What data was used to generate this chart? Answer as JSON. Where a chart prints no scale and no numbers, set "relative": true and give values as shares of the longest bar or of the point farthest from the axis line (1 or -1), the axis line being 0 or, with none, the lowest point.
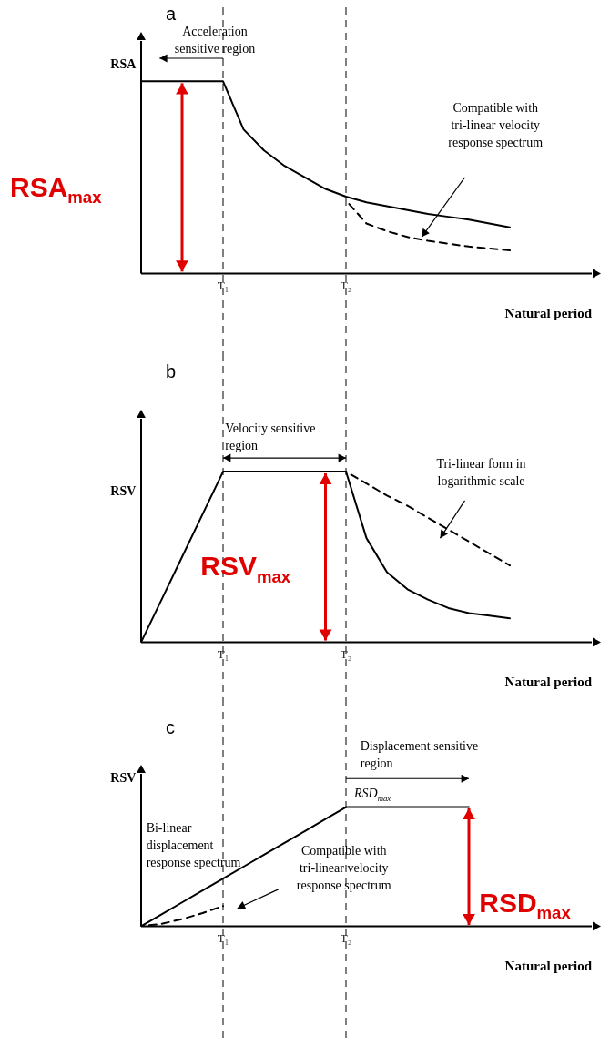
{
  "chart_data": [
    {
      "type": "line",
      "title": "a",
      "ylabel": "RSA",
      "xlabel": "Natural period",
      "relative": true,
      "tick_labels": "x",
      "categories": [
        null,
        null,
        null,
        null,
        "T₁",
        null,
        null,
        null,
        null,
        null,
        "T₂",
        null,
        null,
        null,
        null,
        null,
        null,
        null,
        null,
        null,
        null,
        null,
        null
      ],
      "series": [
        {
          "color": "#000000",
          "line_style": "solid",
          "values": [
            1,
            1,
            1,
            1,
            1,
            0.75,
            0.64,
            0.56,
            0.5,
            0.44,
            0.4,
            0.37,
            0.35,
            0.33,
            0.31,
            0.295,
            0.28,
            0.26,
            0.24,
            null,
            null,
            null,
            null
          ]
        },
        {
          "color": "#000000",
          "line_style": "dashed",
          "values": [
            null,
            null,
            null,
            null,
            null,
            null,
            null,
            null,
            null,
            null,
            0.38,
            0.26,
            0.22,
            0.19,
            0.17,
            0.155,
            0.14,
            0.13,
            0.12,
            null,
            null,
            null,
            null
          ]
        }
      ],
      "ref_lines": [
        {
          "axis": "x",
          "value": "T₁",
          "color": "#000000",
          "line_style": "dashed"
        },
        {
          "axis": "x",
          "value": "T₂",
          "color": "#000000",
          "line_style": "dashed"
        }
      ],
      "annotations": [
        "Acceleration sensitive region",
        "Compatible with tri-linear velocity response spectrum",
        "RSA$_{max}$"
      ]
    },
    {
      "type": "line",
      "title": "b",
      "ylabel": "RSV",
      "xlabel": "Natural period",
      "relative": true,
      "tick_labels": "x",
      "categories": [
        null,
        null,
        null,
        null,
        "T₁",
        null,
        null,
        null,
        null,
        null,
        "T₂",
        null,
        null,
        null,
        null,
        null,
        null,
        null,
        null,
        null,
        null,
        null,
        null
      ],
      "series": [
        {
          "color": "#000000",
          "line_style": "solid",
          "values": [
            0,
            0.25,
            0.5,
            0.75,
            1,
            1,
            1,
            1,
            1,
            1,
            1,
            0.61,
            0.41,
            0.31,
            0.25,
            0.2,
            0.17,
            0.155,
            0.14,
            null,
            null,
            null,
            null
          ]
        },
        {
          "color": "#000000",
          "line_style": "dashed",
          "values": [
            null,
            null,
            null,
            null,
            null,
            null,
            null,
            null,
            null,
            null,
            1,
            0.93,
            0.86,
            0.8,
            0.73,
            0.66,
            0.59,
            0.52,
            0.45,
            null,
            null,
            null,
            null
          ]
        }
      ],
      "ref_lines": [
        {
          "axis": "x",
          "value": "T₁",
          "color": "#000000",
          "line_style": "dashed"
        },
        {
          "axis": "x",
          "value": "T₂",
          "color": "#000000",
          "line_style": "dashed"
        }
      ],
      "annotations": [
        "Velocity sensitive region",
        "Tri-linear form in logarithmic scale",
        "RSV$_{max}$"
      ]
    },
    {
      "type": "line",
      "title": "c",
      "ylabel": "RSV",
      "xlabel": "Natural period",
      "relative": true,
      "tick_labels": "x",
      "categories": [
        null,
        null,
        null,
        null,
        "T₁",
        null,
        null,
        null,
        null,
        null,
        "T₂",
        null,
        null,
        null,
        null,
        null,
        null,
        null,
        null,
        null,
        null,
        null,
        null
      ],
      "series": [
        {
          "color": "#000000",
          "line_style": "solid",
          "values": [
            0,
            0.1,
            0.2,
            0.3,
            0.4,
            0.5,
            0.6,
            0.7,
            0.8,
            0.9,
            1,
            1,
            1,
            1,
            1,
            1,
            1,
            null,
            null,
            null,
            null,
            null,
            null
          ]
        },
        {
          "color": "#000000",
          "line_style": "dashed",
          "values": [
            0,
            0.02,
            0.06,
            0.11,
            0.17,
            null,
            null,
            null,
            null,
            null,
            null,
            null,
            null,
            null,
            null,
            null,
            null,
            null,
            null,
            null,
            null,
            null,
            null
          ]
        }
      ],
      "ref_lines": [
        {
          "axis": "x",
          "value": "T₁",
          "color": "#000000",
          "line_style": "dashed"
        },
        {
          "axis": "x",
          "value": "T₂",
          "color": "#000000",
          "line_style": "dashed"
        }
      ],
      "annotations": [
        "Displacement sensitive region",
        "RSD$_{max}$",
        "Bi-linear displacement response spectrum",
        "Compatible with tri-linear velocity response spectrum",
        "RSD$_{max}$"
      ]
    }
  ]
}
